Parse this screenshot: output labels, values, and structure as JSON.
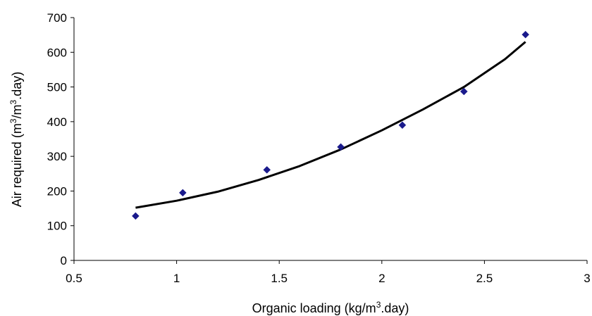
{
  "chart_data": {
    "type": "scatter",
    "xlabel": {
      "pre": "Organic loading (kg/m",
      "sup": "3",
      "post": ".day)"
    },
    "ylabel": {
      "pre": "Air required (m",
      "sup1": "3",
      "mid": "/m",
      "sup2": "3",
      "post": ".day)"
    },
    "xlim": [
      0.5,
      3
    ],
    "ylim": [
      0,
      700
    ],
    "x_ticks": [
      0.5,
      1,
      1.5,
      2,
      2.5,
      3
    ],
    "x_tick_labels": [
      "0.5",
      "1",
      "1.5",
      "2",
      "2.5",
      "3"
    ],
    "y_ticks": [
      0,
      100,
      200,
      300,
      400,
      500,
      600,
      700
    ],
    "y_tick_labels": [
      "0",
      "100",
      "200",
      "300",
      "400",
      "500",
      "600",
      "700"
    ],
    "grid": false,
    "series": [
      {
        "type": "scatter",
        "marker": "diamond",
        "color": "#1a1a8c",
        "x": [
          0.8,
          1.03,
          1.44,
          1.8,
          2.1,
          2.4,
          2.7
        ],
        "y": [
          128,
          195,
          261,
          327,
          390,
          487,
          651
        ]
      },
      {
        "type": "line",
        "color": "#000000",
        "x": [
          0.8,
          1.0,
          1.2,
          1.4,
          1.6,
          1.8,
          2.0,
          2.2,
          2.4,
          2.6,
          2.7
        ],
        "y": [
          152,
          172,
          198,
          232,
          272,
          320,
          375,
          435,
          500,
          580,
          630
        ]
      }
    ]
  }
}
